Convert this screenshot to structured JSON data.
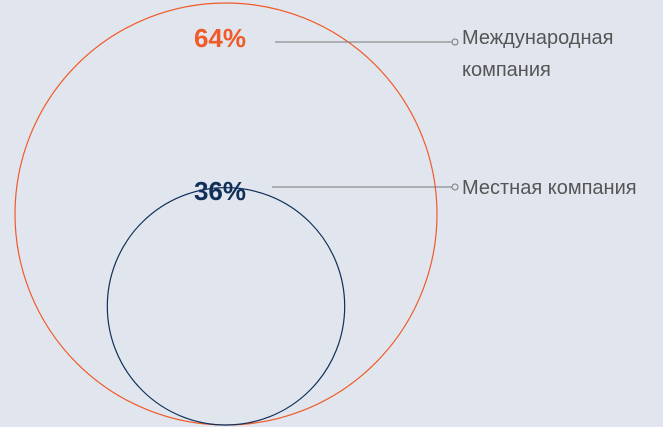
{
  "chart_data": {
    "type": "nested-circles",
    "series": [
      {
        "name": "Международная компания",
        "color": "#f05a28",
        "values": [
          64
        ],
        "value_labels": [
          "64%"
        ]
      },
      {
        "name": "Местная компания",
        "color": "#10305a",
        "values": [
          36
        ],
        "value_labels": [
          "36%"
        ]
      }
    ]
  }
}
